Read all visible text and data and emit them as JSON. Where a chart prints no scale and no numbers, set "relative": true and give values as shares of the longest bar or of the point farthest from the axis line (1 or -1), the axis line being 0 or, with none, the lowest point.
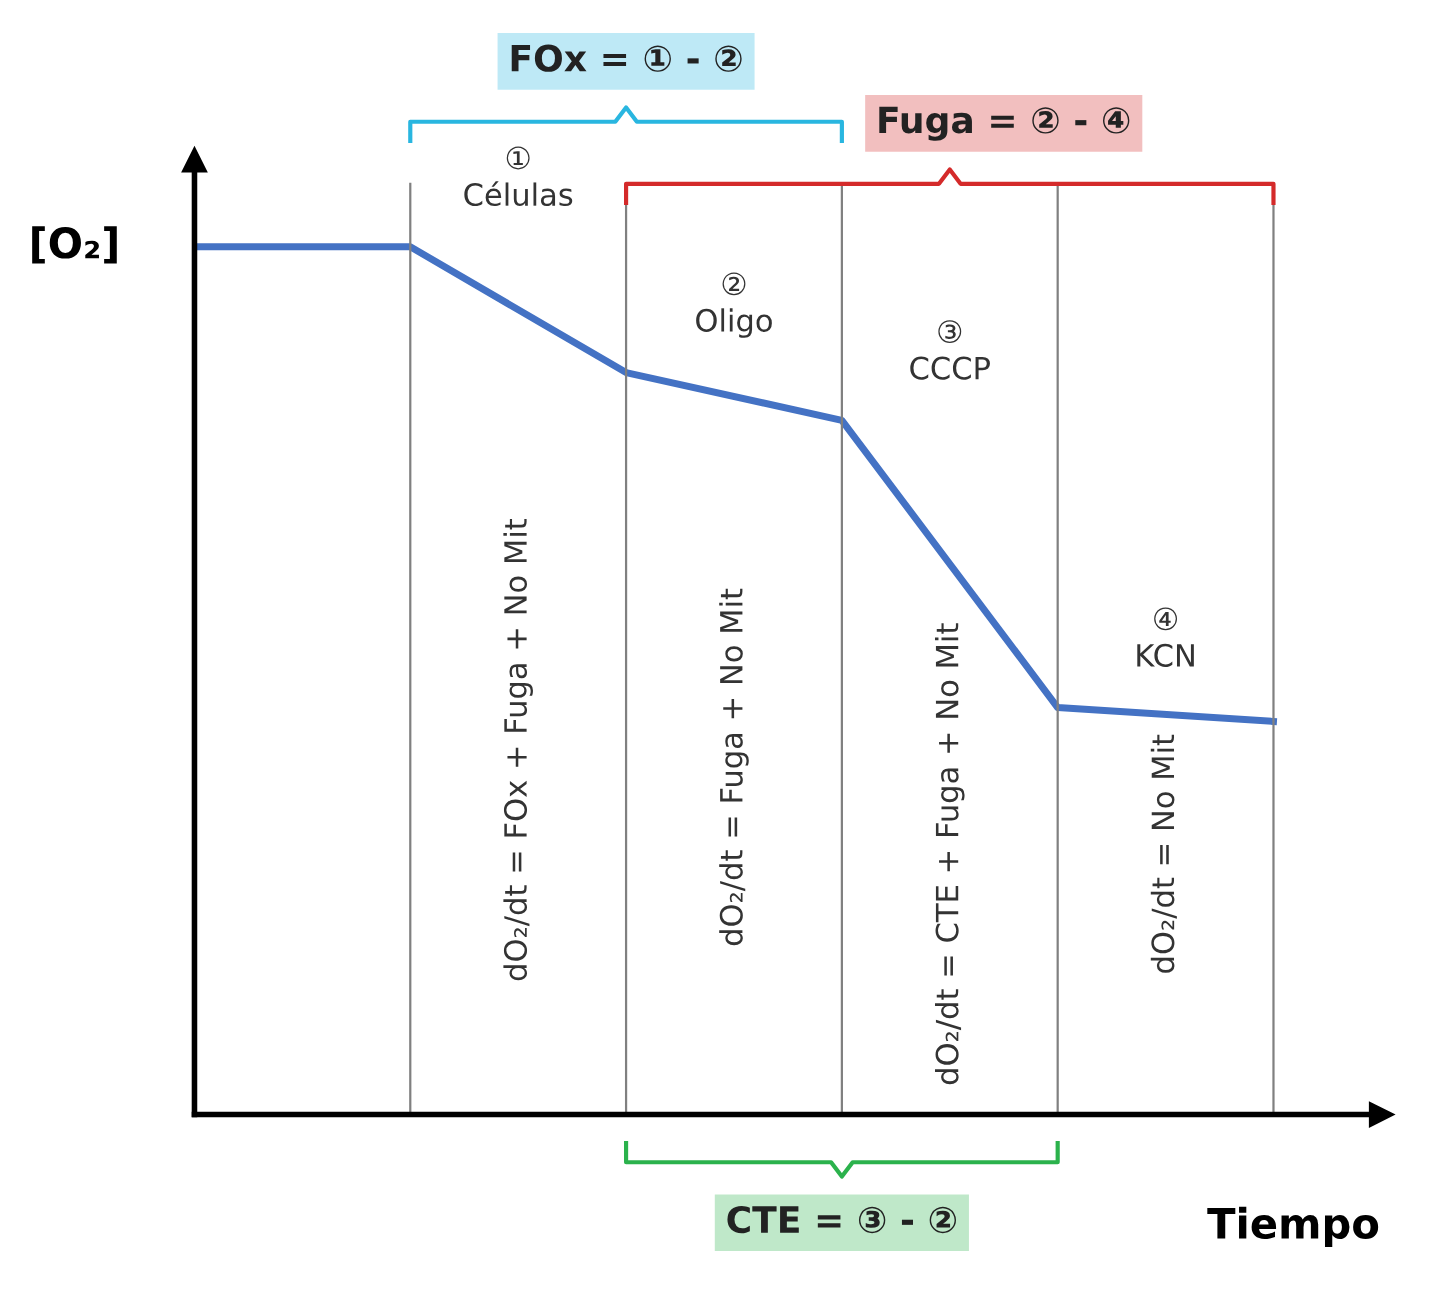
{
  "chart_data": {
    "type": "line",
    "relative": true,
    "ylabel": "[O₂]",
    "xlabel": "Tiempo",
    "categories": [
      null,
      null,
      null,
      null,
      null,
      null
    ],
    "series": [
      {
        "color": "#4472c4",
        "values": [
          1,
          1,
          0.855,
          0.8,
          0.469,
          0.453
        ]
      }
    ],
    "annotations": [
      "FOx = ① - ②",
      "Fuga = ② - ④",
      "CTE = ③ - ②",
      "①\nCélulas",
      "②\nOligo",
      "③\nCCCP",
      "④\nKCN",
      "dO₂/dt = FOx + Fuga + No Mit",
      "dO₂/dt = Fuga + No Mit",
      "dO₂/dt = CTE + Fuga + No Mit",
      "dO₂/dt = No Mit"
    ],
    "grid": "x",
    "marker": "none",
    "line_style": "solid"
  }
}
